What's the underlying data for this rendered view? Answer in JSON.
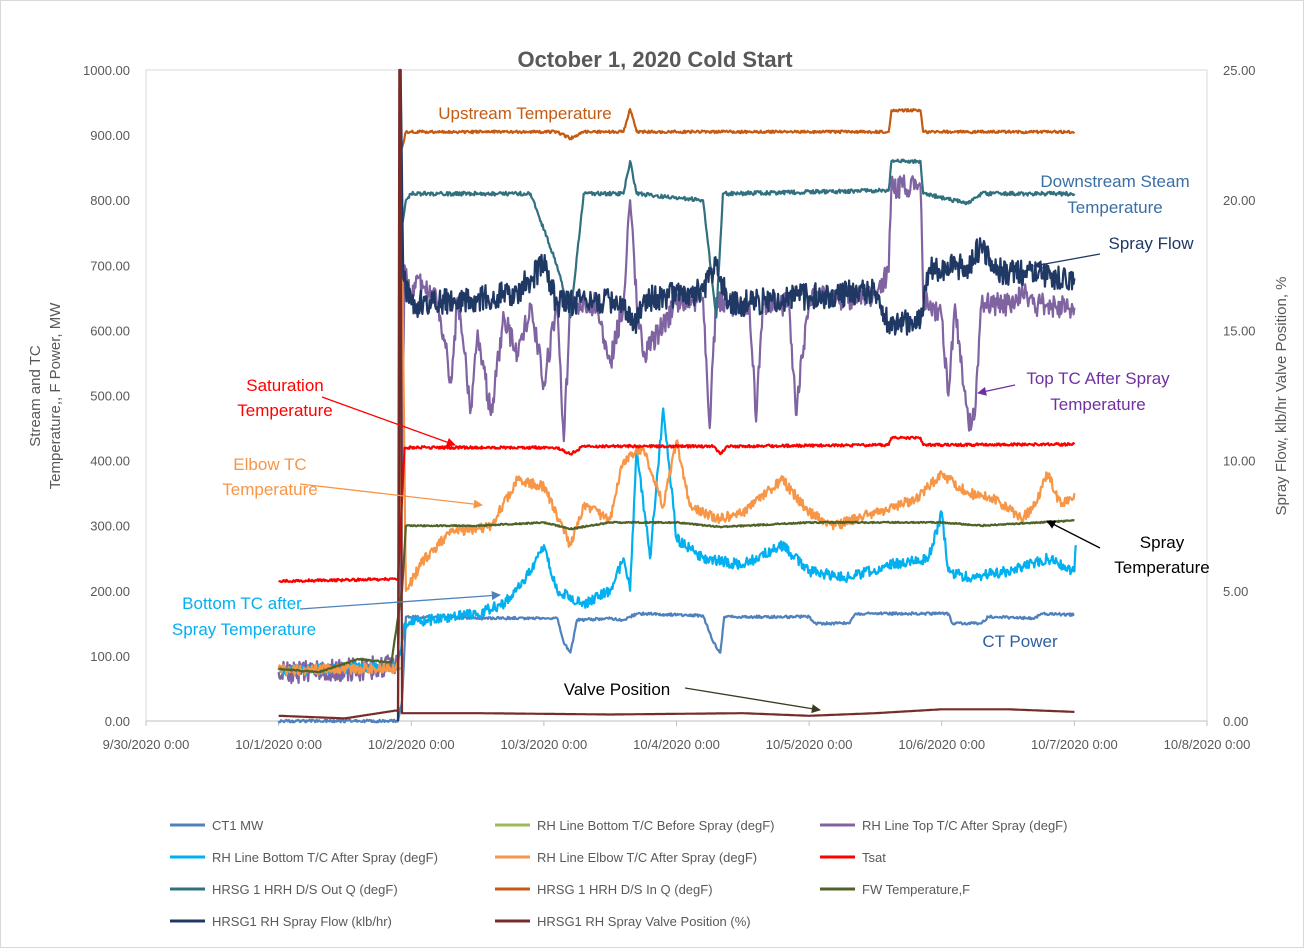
{
  "chart_data": {
    "type": "line",
    "title": "October 1, 2020 Cold Start",
    "ylabel_left": [
      "Stream and TC",
      "Temperature,, F  Power, MW"
    ],
    "ylabel_right": "Spray Flow, klb/hr  Valve Position, %",
    "ylim_left": [
      0,
      1000
    ],
    "ylim_right": [
      0,
      25
    ],
    "x_unit": "days since 9/30/2020 0:00",
    "xlim": [
      0,
      8
    ],
    "grid": false,
    "legend_position": "bottom",
    "x_tick_labels": [
      "9/30/2020 0:00",
      "10/1/2020 0:00",
      "10/2/2020 0:00",
      "10/3/2020 0:00",
      "10/4/2020 0:00",
      "10/5/2020 0:00",
      "10/6/2020 0:00",
      "10/7/2020 0:00",
      "10/8/2020 0:00"
    ],
    "y_left_tick_labels": [
      "0.00",
      "100.00",
      "200.00",
      "300.00",
      "400.00",
      "500.00",
      "600.00",
      "700.00",
      "800.00",
      "900.00",
      "1000.00"
    ],
    "y_right_tick_labels": [
      "0.00",
      "5.00",
      "10.00",
      "15.00",
      "20.00",
      "25.00"
    ],
    "series": [
      {
        "name": "CT1 MW",
        "color": "#4f81bd",
        "axis": "left",
        "noise": 2,
        "points": [
          [
            1,
            0
          ],
          [
            1.9,
            0
          ],
          [
            1.93,
            30
          ],
          [
            1.96,
            160
          ],
          [
            2.5,
            158
          ],
          [
            3.1,
            158
          ],
          [
            3.15,
            120
          ],
          [
            3.2,
            105
          ],
          [
            3.25,
            155
          ],
          [
            3.5,
            158
          ],
          [
            3.6,
            155
          ],
          [
            3.7,
            165
          ],
          [
            4.2,
            162
          ],
          [
            4.28,
            120
          ],
          [
            4.33,
            105
          ],
          [
            4.36,
            160
          ],
          [
            5.0,
            160
          ],
          [
            5.05,
            150
          ],
          [
            5.3,
            150
          ],
          [
            5.35,
            165
          ],
          [
            5.8,
            165
          ],
          [
            6.05,
            165
          ],
          [
            6.08,
            150
          ],
          [
            6.3,
            150
          ],
          [
            6.35,
            160
          ],
          [
            6.7,
            158
          ],
          [
            6.75,
            165
          ],
          [
            7.0,
            163
          ]
        ]
      },
      {
        "name": "RH Line Bottom T/C Before Spray (degF)",
        "color": "#9bbb59",
        "axis": "left",
        "noise": 1,
        "points": [
          [
            1,
            75
          ],
          [
            1.5,
            75
          ],
          [
            1.9,
            80
          ],
          [
            1.92,
            80
          ]
        ]
      },
      {
        "name": "RH Line Top T/C After Spray (degF)",
        "color": "#8064a2",
        "axis": "left",
        "noise": 18,
        "points": [
          [
            1,
            75
          ],
          [
            1.5,
            78
          ],
          [
            1.9,
            85
          ],
          [
            1.93,
            400
          ],
          [
            1.95,
            700
          ],
          [
            2.0,
            650
          ],
          [
            2.05,
            680
          ],
          [
            2.2,
            640
          ],
          [
            2.3,
            520
          ],
          [
            2.35,
            650
          ],
          [
            2.45,
            480
          ],
          [
            2.5,
            600
          ],
          [
            2.6,
            470
          ],
          [
            2.7,
            620
          ],
          [
            2.8,
            560
          ],
          [
            2.9,
            640
          ],
          [
            3.0,
            520
          ],
          [
            3.1,
            640
          ],
          [
            3.15,
            430
          ],
          [
            3.2,
            640
          ],
          [
            3.4,
            640
          ],
          [
            3.5,
            550
          ],
          [
            3.6,
            640
          ],
          [
            3.65,
            800
          ],
          [
            3.7,
            640
          ],
          [
            3.75,
            560
          ],
          [
            4.0,
            640
          ],
          [
            4.2,
            650
          ],
          [
            4.25,
            450
          ],
          [
            4.3,
            650
          ],
          [
            4.4,
            640
          ],
          [
            4.55,
            640
          ],
          [
            4.6,
            460
          ],
          [
            4.65,
            640
          ],
          [
            4.85,
            640
          ],
          [
            4.9,
            470
          ],
          [
            5.0,
            650
          ],
          [
            5.5,
            650
          ],
          [
            5.6,
            690
          ],
          [
            5.62,
            820
          ],
          [
            5.84,
            820
          ],
          [
            5.86,
            650
          ],
          [
            6.0,
            620
          ],
          [
            6.05,
            500
          ],
          [
            6.1,
            640
          ],
          [
            6.2,
            460
          ],
          [
            6.25,
            470
          ],
          [
            6.3,
            640
          ],
          [
            6.5,
            640
          ],
          [
            6.6,
            660
          ],
          [
            6.7,
            640
          ],
          [
            7.0,
            635
          ]
        ]
      },
      {
        "name": "RH Line Bottom T/C After Spray (degF)",
        "color": "#00b0f0",
        "axis": "left",
        "noise": 8,
        "points": [
          [
            1,
            78
          ],
          [
            1.9,
            85
          ],
          [
            1.95,
            150
          ],
          [
            2.5,
            165
          ],
          [
            2.7,
            180
          ],
          [
            2.9,
            230
          ],
          [
            3.0,
            270
          ],
          [
            3.1,
            200
          ],
          [
            3.3,
            180
          ],
          [
            3.5,
            200
          ],
          [
            3.6,
            250
          ],
          [
            3.65,
            200
          ],
          [
            3.7,
            420
          ],
          [
            3.8,
            250
          ],
          [
            3.9,
            480
          ],
          [
            4.0,
            280
          ],
          [
            4.2,
            250
          ],
          [
            4.5,
            240
          ],
          [
            4.8,
            270
          ],
          [
            5.0,
            230
          ],
          [
            5.3,
            220
          ],
          [
            5.6,
            240
          ],
          [
            5.9,
            250
          ],
          [
            6.0,
            320
          ],
          [
            6.05,
            230
          ],
          [
            6.2,
            220
          ],
          [
            6.5,
            230
          ],
          [
            6.8,
            250
          ],
          [
            7.0,
            230
          ],
          [
            7.01,
            270
          ]
        ]
      },
      {
        "name": "RH Line Elbow T/C After Spray (degF)",
        "color": "#f79646",
        "axis": "left",
        "noise": 8,
        "points": [
          [
            1,
            78
          ],
          [
            1.9,
            82
          ],
          [
            1.93,
            720
          ],
          [
            1.96,
            200
          ],
          [
            2.1,
            250
          ],
          [
            2.3,
            290
          ],
          [
            2.6,
            300
          ],
          [
            2.8,
            370
          ],
          [
            3.0,
            360
          ],
          [
            3.2,
            270
          ],
          [
            3.3,
            330
          ],
          [
            3.5,
            310
          ],
          [
            3.6,
            400
          ],
          [
            3.75,
            420
          ],
          [
            3.9,
            330
          ],
          [
            4.0,
            430
          ],
          [
            4.1,
            330
          ],
          [
            4.3,
            310
          ],
          [
            4.5,
            320
          ],
          [
            4.8,
            370
          ],
          [
            5.0,
            320
          ],
          [
            5.2,
            300
          ],
          [
            5.5,
            320
          ],
          [
            5.8,
            340
          ],
          [
            6.0,
            380
          ],
          [
            6.2,
            350
          ],
          [
            6.4,
            340
          ],
          [
            6.6,
            310
          ],
          [
            6.7,
            330
          ],
          [
            6.8,
            380
          ],
          [
            6.9,
            330
          ],
          [
            7.0,
            350
          ]
        ]
      },
      {
        "name": "Tsat",
        "color": "#ff0000",
        "axis": "left",
        "noise": 2,
        "points": [
          [
            1,
            215
          ],
          [
            1.9,
            218
          ],
          [
            1.95,
            420
          ],
          [
            3.1,
            420
          ],
          [
            3.2,
            410
          ],
          [
            3.3,
            422
          ],
          [
            4.28,
            422
          ],
          [
            4.33,
            410
          ],
          [
            4.38,
            422
          ],
          [
            5.6,
            424
          ],
          [
            5.62,
            435
          ],
          [
            5.84,
            435
          ],
          [
            5.86,
            424
          ],
          [
            7.0,
            425
          ]
        ]
      },
      {
        "name": "HRSG 1 HRH D/S Out Q (degF)",
        "color": "#31707f",
        "axis": "left",
        "noise": 3,
        "points": [
          [
            1.93,
            760
          ],
          [
            1.96,
            800
          ],
          [
            2.0,
            810
          ],
          [
            2.9,
            810
          ],
          [
            3.1,
            700
          ],
          [
            3.2,
            620
          ],
          [
            3.3,
            810
          ],
          [
            3.6,
            810
          ],
          [
            3.65,
            860
          ],
          [
            3.7,
            810
          ],
          [
            4.2,
            800
          ],
          [
            4.3,
            620
          ],
          [
            4.35,
            810
          ],
          [
            5.6,
            815
          ],
          [
            5.62,
            860
          ],
          [
            5.84,
            860
          ],
          [
            5.86,
            810
          ],
          [
            6.2,
            795
          ],
          [
            6.3,
            810
          ],
          [
            7.0,
            810
          ]
        ]
      },
      {
        "name": "HRSG 1 HRH D/S In Q (degF)",
        "color": "#c55a11",
        "axis": "left",
        "noise": 2,
        "points": [
          [
            1.93,
            880
          ],
          [
            1.96,
            905
          ],
          [
            3.1,
            905
          ],
          [
            3.2,
            895
          ],
          [
            3.3,
            905
          ],
          [
            3.6,
            905
          ],
          [
            3.65,
            940
          ],
          [
            3.7,
            905
          ],
          [
            5.6,
            905
          ],
          [
            5.62,
            938
          ],
          [
            5.84,
            938
          ],
          [
            5.86,
            905
          ],
          [
            7.0,
            905
          ]
        ]
      },
      {
        "name": "FW Temperature,F",
        "color": "#4f6228",
        "axis": "left",
        "noise": 1,
        "points": [
          [
            1,
            80
          ],
          [
            1.3,
            75
          ],
          [
            1.6,
            95
          ],
          [
            1.85,
            90
          ],
          [
            1.93,
            200
          ],
          [
            1.96,
            300
          ],
          [
            2.5,
            300
          ],
          [
            3.0,
            305
          ],
          [
            3.2,
            295
          ],
          [
            3.5,
            305
          ],
          [
            4.0,
            305
          ],
          [
            4.33,
            298
          ],
          [
            5.0,
            305
          ],
          [
            6.0,
            305
          ],
          [
            6.3,
            300
          ],
          [
            7.0,
            308
          ]
        ]
      },
      {
        "name": "HRSG1 RH Spray Flow (klb/hr)",
        "color": "#1f3864",
        "axis": "right",
        "noise": 0.5,
        "points": [
          [
            1.9,
            0
          ],
          [
            1.92,
            25
          ],
          [
            1.94,
            17
          ],
          [
            2.0,
            16
          ],
          [
            2.5,
            16.2
          ],
          [
            2.8,
            16.5
          ],
          [
            3.0,
            17.5
          ],
          [
            3.1,
            16
          ],
          [
            3.5,
            16.2
          ],
          [
            3.6,
            15.8
          ],
          [
            3.7,
            15.3
          ],
          [
            3.75,
            16.2
          ],
          [
            4.2,
            16.5
          ],
          [
            4.3,
            17.5
          ],
          [
            4.4,
            16
          ],
          [
            5.0,
            16.3
          ],
          [
            5.5,
            16.5
          ],
          [
            5.6,
            15.3
          ],
          [
            5.84,
            15.3
          ],
          [
            5.9,
            17.3
          ],
          [
            6.2,
            17.5
          ],
          [
            6.3,
            18.3
          ],
          [
            6.4,
            17.3
          ],
          [
            7.0,
            17
          ]
        ]
      },
      {
        "name": "HRSG1 RH Spray Valve Position (%)",
        "color": "#772c2a",
        "axis": "right",
        "noise": 0,
        "points": [
          [
            1,
            0.2
          ],
          [
            1.5,
            0.1
          ],
          [
            1.88,
            0.4
          ],
          [
            1.9,
            0.4
          ],
          [
            1.91,
            25
          ],
          [
            1.92,
            25
          ],
          [
            1.93,
            0.3
          ],
          [
            2.5,
            0.3
          ],
          [
            3.5,
            0.25
          ],
          [
            4.5,
            0.3
          ],
          [
            5.0,
            0.2
          ],
          [
            5.5,
            0.3
          ],
          [
            6.0,
            0.45
          ],
          [
            6.5,
            0.45
          ],
          [
            7.0,
            0.35
          ]
        ]
      }
    ],
    "annotations": [
      {
        "id": "upstream",
        "lines": [
          "Upstream Temperature"
        ],
        "color": "#c55a11"
      },
      {
        "id": "downstream",
        "lines": [
          "Downstream Steam",
          "Temperature"
        ],
        "color": "#3b6ea5"
      },
      {
        "id": "sprayflow",
        "lines": [
          "Spray Flow"
        ],
        "color": "#1f3864"
      },
      {
        "id": "saturation",
        "lines": [
          "Saturation",
          "Temperature"
        ],
        "color": "#ff0000"
      },
      {
        "id": "toptc",
        "lines": [
          "Top TC After Spray",
          "Temperature"
        ],
        "color": "#7030a0"
      },
      {
        "id": "elbow",
        "lines": [
          "Elbow TC",
          "Temperature"
        ],
        "color": "#f79646"
      },
      {
        "id": "spraytemp",
        "lines": [
          "Spray",
          "Temperature"
        ],
        "color": "#000000"
      },
      {
        "id": "bottomtc",
        "lines": [
          "Bottom TC after",
          "Spray Temperature"
        ],
        "color": "#00b0f0"
      },
      {
        "id": "ctpower",
        "lines": [
          "CT Power"
        ],
        "color": "#2e5fa0"
      },
      {
        "id": "valve",
        "lines": [
          "Valve Position"
        ],
        "color": "#000000"
      }
    ]
  }
}
